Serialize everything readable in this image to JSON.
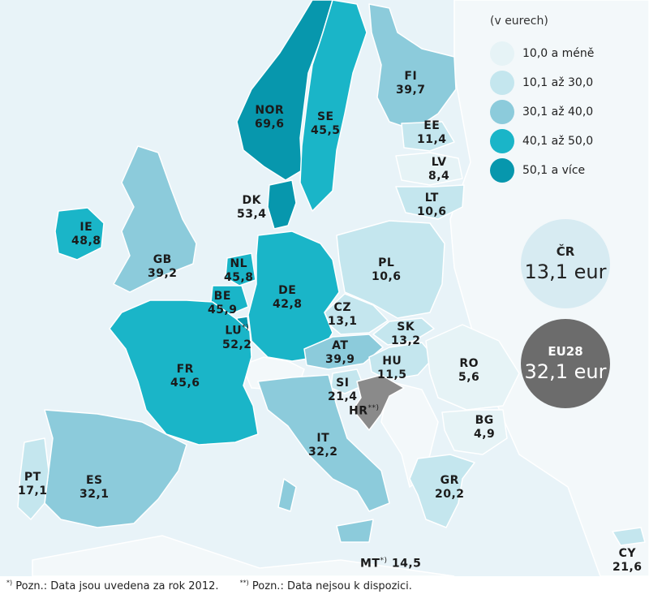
{
  "legend": {
    "unit": "(v eurech)",
    "items": [
      {
        "label": "10,0 a méně",
        "color": "#e6f3f6"
      },
      {
        "label": "10,1 až 30,0",
        "color": "#c4e6ee"
      },
      {
        "label": "30,1 až 40,0",
        "color": "#8ccbdb"
      },
      {
        "label": "40,1 až 50,0",
        "color": "#1ab5c8"
      },
      {
        "label": "50,1 a více",
        "color": "#0797ad"
      }
    ]
  },
  "na_color": "#8a8a8a",
  "countries": {
    "NOR": {
      "code": "NOR",
      "value": "69,6"
    },
    "SE": {
      "code": "SE",
      "value": "45,5"
    },
    "FI": {
      "code": "FI",
      "value": "39,7"
    },
    "EE": {
      "code": "EE",
      "value": "11,4"
    },
    "LV": {
      "code": "LV",
      "value": "8,4"
    },
    "LT": {
      "code": "LT",
      "value": "10,6"
    },
    "DK": {
      "code": "DK",
      "value": "53,4"
    },
    "IE": {
      "code": "IE",
      "value": "48,8"
    },
    "GB": {
      "code": "GB",
      "value": "39,2"
    },
    "NL": {
      "code": "NL",
      "value": "45,8"
    },
    "BE": {
      "code": "BE",
      "value": "45,9"
    },
    "LU": {
      "code": "LU",
      "value": "52,2",
      "note": "*)"
    },
    "DE": {
      "code": "DE",
      "value": "42,8"
    },
    "PL": {
      "code": "PL",
      "value": "10,6"
    },
    "CZ": {
      "code": "CZ",
      "value": "13,1"
    },
    "SK": {
      "code": "SK",
      "value": "13,2"
    },
    "AT": {
      "code": "AT",
      "value": "39,9"
    },
    "HU": {
      "code": "HU",
      "value": "11,5"
    },
    "RO": {
      "code": "RO",
      "value": "5,6"
    },
    "FR": {
      "code": "FR",
      "value": "45,6"
    },
    "SI": {
      "code": "SI",
      "value": "21,4"
    },
    "HR": {
      "code": "HR",
      "value": "",
      "note": "**)"
    },
    "BG": {
      "code": "BG",
      "value": "4,9"
    },
    "IT": {
      "code": "IT",
      "value": "32,2"
    },
    "GR": {
      "code": "GR",
      "value": "20,2"
    },
    "PT": {
      "code": "PT",
      "value": "17,1"
    },
    "ES": {
      "code": "ES",
      "value": "32,1"
    },
    "MT": {
      "code": "MT",
      "value": "14,5",
      "note": "*)"
    },
    "CY": {
      "code": "CY",
      "value": "21,6"
    }
  },
  "bubbles": {
    "cz": {
      "title": "ČR",
      "value": "13,1 eur"
    },
    "eu": {
      "title": "EU28",
      "value": "32,1 eur"
    }
  },
  "notes": {
    "n1_mark": "*)",
    "n1_text": " Pozn.: Data jsou uvedena za rok 2012.",
    "n2_mark": "**)",
    "n2_text": " Pozn.: Data nejsou k dispozici."
  }
}
